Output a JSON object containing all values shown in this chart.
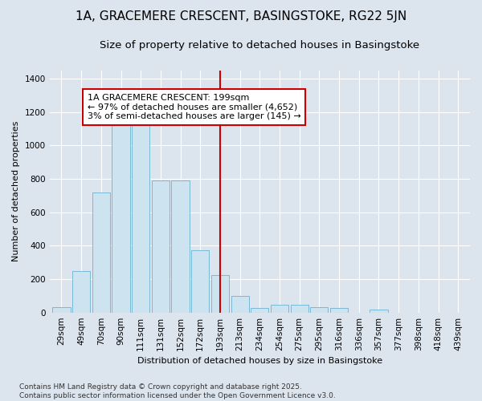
{
  "title": "1A, GRACEMERE CRESCENT, BASINGSTOKE, RG22 5JN",
  "subtitle": "Size of property relative to detached houses in Basingstoke",
  "xlabel": "Distribution of detached houses by size in Basingstoke",
  "ylabel": "Number of detached properties",
  "bin_labels": [
    "29sqm",
    "49sqm",
    "70sqm",
    "90sqm",
    "111sqm",
    "131sqm",
    "152sqm",
    "172sqm",
    "193sqm",
    "213sqm",
    "234sqm",
    "254sqm",
    "275sqm",
    "295sqm",
    "316sqm",
    "336sqm",
    "357sqm",
    "377sqm",
    "398sqm",
    "418sqm",
    "439sqm"
  ],
  "bar_values": [
    30,
    250,
    720,
    1130,
    1140,
    790,
    790,
    375,
    225,
    100,
    25,
    45,
    45,
    30,
    25,
    0,
    18,
    0,
    0,
    0,
    0
  ],
  "bar_color": "#cde4f0",
  "bar_edge_color": "#7ab8d4",
  "vline_x_index": 8,
  "vline_color": "#cc0000",
  "annotation_text": "1A GRACEMERE CRESCENT: 199sqm\n← 97% of detached houses are smaller (4,652)\n3% of semi-detached houses are larger (145) →",
  "annotation_box_color": "white",
  "annotation_box_edge_color": "#cc0000",
  "ylim": [
    0,
    1450
  ],
  "yticks": [
    0,
    200,
    400,
    600,
    800,
    1000,
    1200,
    1400
  ],
  "bg_color": "#dce4ee",
  "plot_bg_color": "#dce4ee",
  "footer_text": "Contains HM Land Registry data © Crown copyright and database right 2025.\nContains public sector information licensed under the Open Government Licence v3.0.",
  "title_fontsize": 11,
  "subtitle_fontsize": 9.5,
  "axis_label_fontsize": 8,
  "tick_fontsize": 7.5,
  "annotation_fontsize": 8,
  "footer_fontsize": 6.5
}
